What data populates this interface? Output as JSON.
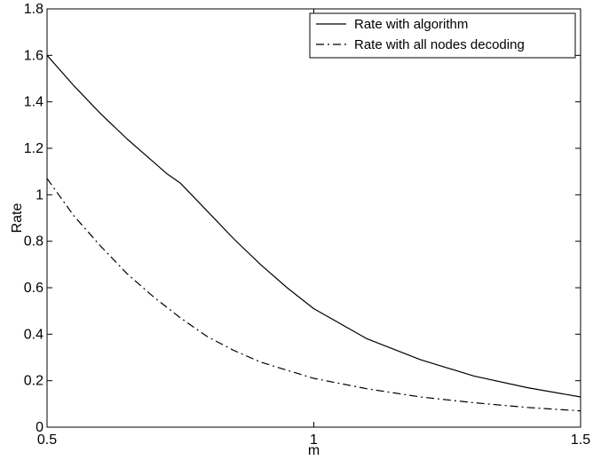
{
  "chart_data": {
    "type": "line",
    "xlabel": "m",
    "ylabel": "Rate",
    "xlim": [
      0.5,
      1.5
    ],
    "ylim": [
      0,
      1.8
    ],
    "xticks": [
      0.5,
      1,
      1.5
    ],
    "xtick_labels": [
      "0.5",
      "1",
      "1.5"
    ],
    "yticks": [
      0,
      0.2,
      0.4,
      0.6,
      0.8,
      1,
      1.2,
      1.4,
      1.6,
      1.8
    ],
    "ytick_labels": [
      "0",
      "0.2",
      "0.4",
      "0.6",
      "0.8",
      "1",
      "1.2",
      "1.4",
      "1.6",
      "1.8"
    ],
    "grid": false,
    "legend_position": "top-right",
    "series": [
      {
        "name": "Rate with algorithm",
        "style": "solid",
        "color": "#000000",
        "x": [
          0.5,
          0.55,
          0.6,
          0.65,
          0.7,
          0.725,
          0.75,
          0.8,
          0.85,
          0.9,
          0.95,
          1.0,
          1.1,
          1.2,
          1.3,
          1.4,
          1.5
        ],
        "y": [
          1.6,
          1.47,
          1.35,
          1.24,
          1.14,
          1.09,
          1.05,
          0.93,
          0.81,
          0.7,
          0.6,
          0.51,
          0.38,
          0.29,
          0.22,
          0.17,
          0.13
        ]
      },
      {
        "name": "Rate with all nodes decoding",
        "style": "dashdot",
        "color": "#000000",
        "x": [
          0.5,
          0.55,
          0.6,
          0.65,
          0.7,
          0.75,
          0.8,
          0.85,
          0.9,
          0.95,
          1.0,
          1.1,
          1.2,
          1.3,
          1.4,
          1.5
        ],
        "y": [
          1.07,
          0.91,
          0.78,
          0.66,
          0.56,
          0.47,
          0.39,
          0.33,
          0.28,
          0.245,
          0.21,
          0.165,
          0.13,
          0.105,
          0.085,
          0.07
        ]
      }
    ]
  }
}
